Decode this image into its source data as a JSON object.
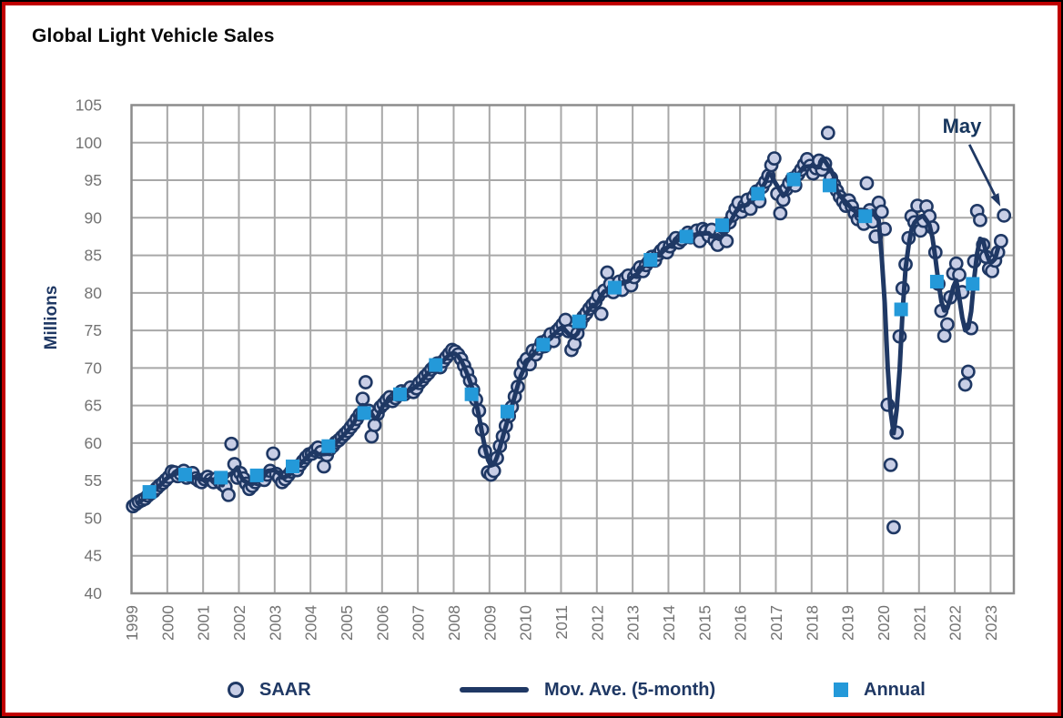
{
  "header": {
    "title": "Global Light Vehicle Sales"
  },
  "y_axis": {
    "label": "Millions"
  },
  "annotation": {
    "label": "May"
  },
  "legend": [
    {
      "label": "SAAR",
      "marker": "circle"
    },
    {
      "label": "Mov. Ave. (5-month)",
      "marker": "line"
    },
    {
      "label": "Annual",
      "marker": "square"
    }
  ],
  "colors": {
    "navy": "#1F3864",
    "annual_blue": "#2499D9",
    "saar_fill": "#C8CEE6",
    "grid": "#A8A8A8",
    "frame": "#8C8C8C",
    "tick_text": "#737373",
    "border_red": "#C00000",
    "border_black": "#000000",
    "title_text": "#0a0a0a"
  },
  "chart_data": {
    "type": "line",
    "title": "Global Light Vehicle Sales",
    "xlabel": "",
    "ylabel": "Millions",
    "ylim": [
      40,
      105
    ],
    "y_ticks": [
      40,
      45,
      50,
      55,
      60,
      65,
      70,
      75,
      80,
      85,
      90,
      95,
      100,
      105
    ],
    "x_tick_years": [
      1999,
      2000,
      2001,
      2002,
      2003,
      2004,
      2005,
      2006,
      2007,
      2008,
      2009,
      2010,
      2011,
      2012,
      2013,
      2014,
      2015,
      2016,
      2017,
      2018,
      2019,
      2020,
      2021,
      2022,
      2023
    ],
    "x_range": [
      1999.0,
      2023.65
    ],
    "grid": true,
    "legend_position": "bottom",
    "units": "millions of vehicles, seasonally adjusted annual rate",
    "series": [
      {
        "name": "SAAR",
        "type": "scatter",
        "frequency": "monthly",
        "data_by_year": [
          {
            "year": 1999,
            "values": [
              51.6,
              51.9,
              52.2,
              52.4,
              52.6,
              53.0,
              53.3,
              53.6,
              54.0,
              54.4,
              54.7,
              55.1
            ]
          },
          {
            "year": 2000,
            "values": [
              55.5,
              56.2,
              56.1,
              55.6,
              55.9,
              56.3,
              55.4,
              55.7,
              56.0,
              55.3,
              55.0,
              54.8
            ]
          },
          {
            "year": 2001,
            "values": [
              55.2,
              55.5,
              55.1,
              54.8,
              55.3,
              54.9,
              54.5,
              54.2,
              53.1,
              59.9,
              57.2,
              55.4
            ]
          },
          {
            "year": 2002,
            "values": [
              56.0,
              55.3,
              54.6,
              53.9,
              54.3,
              54.8,
              55.2,
              55.6,
              55.1,
              55.8,
              56.3,
              58.6
            ]
          },
          {
            "year": 2003,
            "values": [
              55.9,
              55.4,
              54.8,
              55.2,
              55.7,
              56.2,
              56.6,
              56.4,
              57.1,
              57.6,
              58.1,
              58.5
            ]
          },
          {
            "year": 2004,
            "values": [
              58.6,
              59.0,
              59.4,
              58.8,
              56.9,
              58.4,
              59.2,
              59.6,
              60.1,
              60.4,
              60.8,
              61.2
            ]
          },
          {
            "year": 2005,
            "values": [
              61.6,
              62.1,
              62.6,
              63.2,
              63.8,
              65.9,
              68.1,
              64.3,
              60.9,
              62.4,
              63.9,
              64.8
            ]
          },
          {
            "year": 2006,
            "values": [
              65.2,
              65.7,
              66.1,
              65.6,
              66.0,
              66.4,
              66.9,
              66.5,
              67.0,
              67.4,
              66.8,
              67.3
            ]
          },
          {
            "year": 2007,
            "values": [
              68.0,
              68.4,
              68.9,
              69.3,
              69.8,
              70.2,
              70.6,
              70.1,
              70.9,
              71.4,
              71.9,
              72.4
            ]
          },
          {
            "year": 2008,
            "values": [
              72.2,
              71.8,
              71.2,
              70.3,
              69.4,
              68.3,
              67.1,
              65.8,
              64.3,
              61.8,
              58.9,
              56.1
            ]
          },
          {
            "year": 2009,
            "values": [
              55.8,
              56.3,
              58.0,
              59.6,
              60.9,
              62.3,
              63.6,
              64.8,
              66.2,
              67.5,
              69.3,
              70.6
            ]
          },
          {
            "year": 2010,
            "values": [
              71.2,
              70.5,
              72.3,
              71.8,
              72.6,
              73.4,
              72.9,
              73.8,
              74.5,
              73.6,
              74.9,
              75.3
            ]
          },
          {
            "year": 2011,
            "values": [
              75.8,
              76.4,
              74.9,
              72.4,
              73.2,
              74.6,
              75.9,
              76.8,
              77.3,
              77.9,
              78.4,
              78.8
            ]
          },
          {
            "year": 2012,
            "values": [
              79.6,
              77.2,
              80.3,
              82.7,
              81.2,
              80.1,
              80.8,
              81.5,
              80.4,
              81.9,
              82.3,
              81.0
            ]
          },
          {
            "year": 2013,
            "values": [
              82.1,
              82.8,
              83.4,
              82.9,
              83.7,
              84.2,
              84.8,
              84.3,
              85.1,
              85.6,
              86.0,
              85.4
            ]
          },
          {
            "year": 2014,
            "values": [
              86.2,
              86.8,
              87.3,
              86.7,
              87.1,
              87.6,
              88.0,
              87.4,
              87.9,
              88.3,
              86.9,
              88.5
            ]
          },
          {
            "year": 2015,
            "values": [
              88.2,
              87.6,
              88.4,
              87.0,
              86.4,
              87.8,
              88.7,
              86.9,
              89.4,
              90.3,
              91.2,
              92.0
            ]
          },
          {
            "year": 2016,
            "values": [
              90.8,
              91.6,
              92.4,
              91.2,
              92.8,
              93.5,
              92.2,
              94.1,
              94.8,
              95.6,
              97.0,
              97.9
            ]
          },
          {
            "year": 2017,
            "values": [
              93.2,
              90.6,
              92.4,
              93.8,
              94.6,
              95.2,
              94.3,
              95.8,
              96.4,
              97.1,
              97.8,
              96.9
            ]
          },
          {
            "year": 2018,
            "values": [
              95.9,
              96.6,
              97.6,
              96.4,
              97.2,
              101.3,
              95.3,
              94.4,
              93.6,
              92.8,
              92.2,
              91.6
            ]
          },
          {
            "year": 2019,
            "values": [
              92.3,
              91.5,
              90.6,
              89.8,
              90.4,
              89.2,
              94.6,
              91.0,
              89.5,
              87.5,
              92.0,
              90.8
            ]
          },
          {
            "year": 2020,
            "values": [
              88.5,
              65.1,
              57.1,
              48.8,
              61.4,
              74.2,
              80.6,
              83.8,
              87.3,
              90.2,
              89.4,
              91.6
            ]
          },
          {
            "year": 2021,
            "values": [
              88.3,
              89.6,
              91.5,
              90.2,
              88.7,
              85.4,
              81.2,
              77.6,
              74.3,
              75.8,
              79.4,
              82.6
            ]
          },
          {
            "year": 2022,
            "values": [
              83.9,
              82.4,
              80.1,
              67.8,
              69.5,
              75.3,
              84.2,
              90.9,
              89.7,
              86.4,
              84.8,
              83.2
            ]
          },
          {
            "year": 2023,
            "values": [
              82.9,
              84.3,
              85.4,
              86.9,
              90.3
            ]
          }
        ]
      },
      {
        "name": "Mov. Ave. (5-month)",
        "type": "line",
        "derived_from": "SAAR",
        "window": 5,
        "centered": true
      },
      {
        "name": "Annual",
        "type": "scatter-square",
        "years": [
          1999,
          2000,
          2001,
          2002,
          2003,
          2004,
          2005,
          2006,
          2007,
          2008,
          2009,
          2010,
          2011,
          2012,
          2013,
          2014,
          2015,
          2016,
          2017,
          2018,
          2019,
          2020,
          2021,
          2022
        ],
        "values": [
          53.5,
          55.8,
          55.4,
          55.7,
          56.9,
          59.6,
          64.0,
          66.5,
          70.4,
          66.5,
          64.2,
          73.1,
          76.2,
          80.7,
          84.4,
          87.5,
          89.0,
          93.2,
          95.1,
          94.3,
          90.2,
          77.8,
          81.5,
          81.2
        ]
      }
    ],
    "annotation": {
      "text": "May",
      "points_to": {
        "year": 2023,
        "month": 5,
        "value": 90.3
      }
    }
  }
}
